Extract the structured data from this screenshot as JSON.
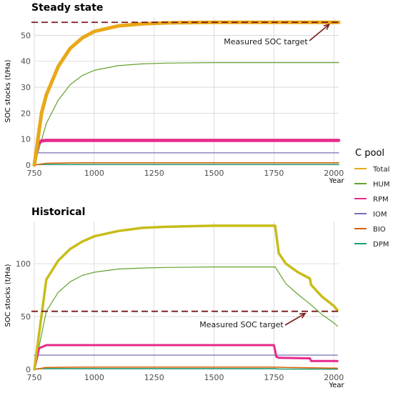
{
  "chart_data": [
    {
      "type": "line",
      "title": "Steady state",
      "xlabel": "Year",
      "ylabel": "SOC stocks (t/Ha)",
      "xlim": [
        750,
        2020
      ],
      "ylim": [
        0,
        57
      ],
      "xticks": [
        750,
        1000,
        1250,
        1500,
        1750,
        2000
      ],
      "yticks": [
        0,
        10,
        20,
        30,
        40,
        50
      ],
      "grid": true,
      "target": {
        "value": 55,
        "label": "Measured SOC target"
      },
      "series": [
        {
          "name": "Total",
          "x": [
            750,
            780,
            800,
            850,
            900,
            950,
            1000,
            1100,
            1200,
            1300,
            1500,
            1750,
            2020
          ],
          "values": [
            0,
            20,
            27,
            38,
            45,
            49,
            51.5,
            53.6,
            54.4,
            54.8,
            55,
            55,
            55
          ]
        },
        {
          "name": "HUM",
          "x": [
            750,
            800,
            850,
            900,
            950,
            1000,
            1100,
            1200,
            1300,
            1500,
            2020
          ],
          "values": [
            0,
            16,
            25,
            31,
            34.5,
            36.5,
            38.3,
            39.0,
            39.3,
            39.5,
            39.5
          ]
        },
        {
          "name": "RPM",
          "x": [
            750,
            765,
            780,
            800,
            2020
          ],
          "values": [
            0,
            8,
            9.3,
            9.5,
            9.5
          ]
        },
        {
          "name": "IOM",
          "x": [
            750,
            752,
            2020
          ],
          "values": [
            4.7,
            4.7,
            4.7
          ]
        },
        {
          "name": "BIO",
          "x": [
            750,
            800,
            900,
            1000,
            2020
          ],
          "values": [
            0,
            0.7,
            0.85,
            0.9,
            0.9
          ]
        },
        {
          "name": "DPM",
          "x": [
            750,
            770,
            2020
          ],
          "values": [
            0,
            0.25,
            0.25
          ]
        }
      ]
    },
    {
      "type": "line",
      "title": "Historical",
      "xlabel": "Year",
      "ylabel": "SOC stocks (t/Ha)",
      "xlim": [
        750,
        2020
      ],
      "ylim": [
        0,
        140
      ],
      "xticks": [
        750,
        1000,
        1250,
        1500,
        1750,
        2000
      ],
      "yticks": [
        0,
        50,
        100
      ],
      "grid": true,
      "target": {
        "value": 55,
        "label": "Measured SOC target"
      },
      "series": [
        {
          "name": "Total",
          "x": [
            750,
            800,
            850,
            900,
            950,
            1000,
            1100,
            1200,
            1300,
            1500,
            1755,
            1770,
            1800,
            1850,
            1900,
            1905,
            1950,
            2000,
            2015
          ],
          "values": [
            0,
            85,
            103,
            114,
            121,
            126,
            131,
            134,
            135,
            136,
            136,
            110,
            100,
            92,
            86,
            80,
            69,
            60,
            56
          ]
        },
        {
          "name": "HUM",
          "x": [
            750,
            800,
            850,
            900,
            950,
            1000,
            1100,
            1200,
            1300,
            1500,
            1755,
            1800,
            1850,
            1900,
            1950,
            2000,
            2015
          ],
          "values": [
            0,
            55,
            73,
            83,
            89,
            92,
            95,
            96,
            96.5,
            97,
            97,
            81,
            71,
            62,
            52,
            44,
            41
          ]
        },
        {
          "name": "RPM",
          "x": [
            750,
            770,
            800,
            1750,
            1760,
            1770,
            1900,
            1905,
            2015
          ],
          "values": [
            0,
            20,
            23,
            23,
            12,
            11,
            10.5,
            8,
            8
          ]
        },
        {
          "name": "IOM",
          "x": [
            750,
            2015
          ],
          "values": [
            13.5,
            13.5
          ]
        },
        {
          "name": "BIO",
          "x": [
            750,
            800,
            900,
            1000,
            1750,
            1800,
            2015
          ],
          "values": [
            0,
            1.8,
            2.1,
            2.2,
            2.2,
            1.8,
            1.2
          ]
        },
        {
          "name": "DPM",
          "x": [
            750,
            770,
            1750,
            1770,
            2015
          ],
          "values": [
            0,
            0.8,
            0.8,
            0.4,
            0.3
          ]
        }
      ]
    }
  ],
  "legend": {
    "title": "C pool",
    "position": "right",
    "items": [
      {
        "name": "Total",
        "color": "#E8A817"
      },
      {
        "name": "HUM",
        "color": "#64A12D"
      },
      {
        "name": "RPM",
        "color": "#E7298A"
      },
      {
        "name": "IOM",
        "color": "#7570B3"
      },
      {
        "name": "BIO",
        "color": "#D95F02"
      },
      {
        "name": "DPM",
        "color": "#1B9E77"
      }
    ]
  },
  "colors": {
    "Total": "#E8A817",
    "HUM": "#64A12D",
    "RPM": "#E7298A",
    "IOM": "#7570B3",
    "BIO": "#D95F02",
    "DPM": "#1B9E77",
    "target": "#7A1818",
    "Total_historical": "#C8BC19"
  }
}
